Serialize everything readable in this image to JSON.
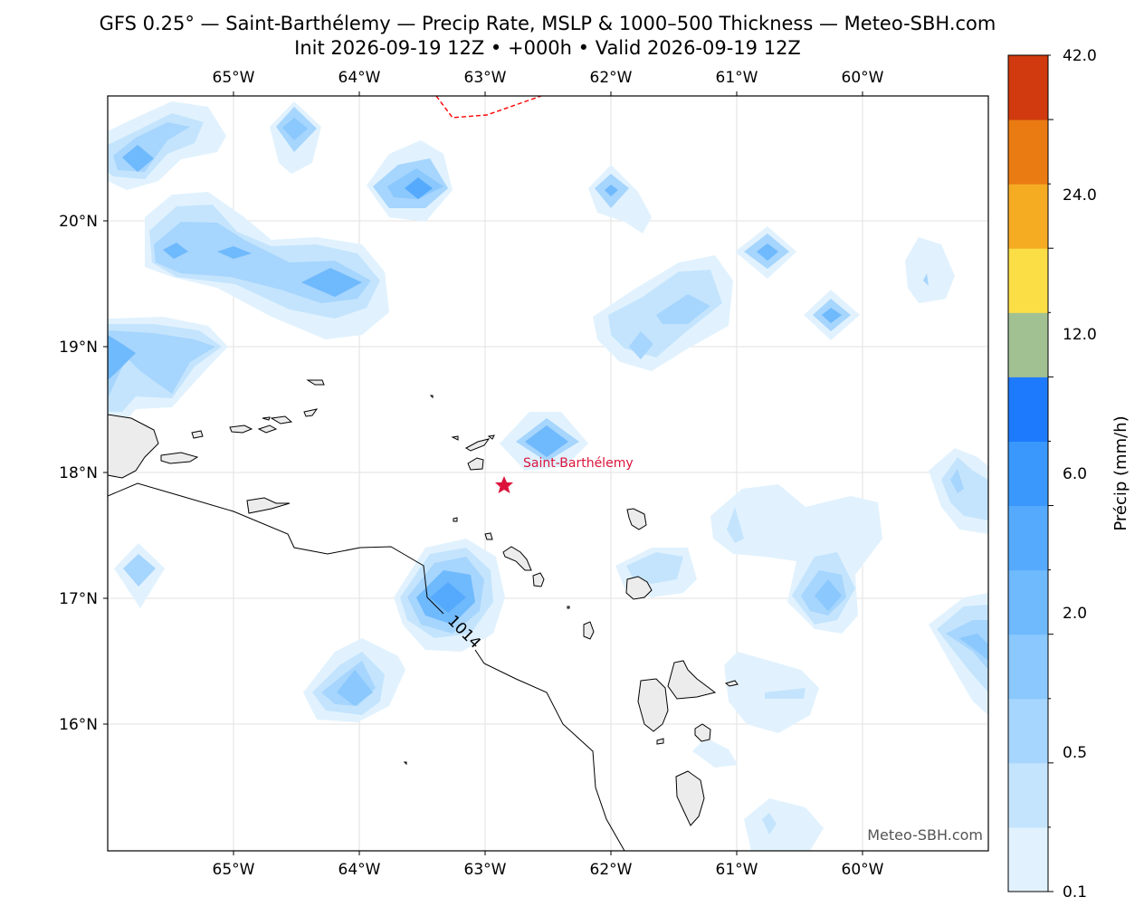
{
  "title_line1": "GFS 0.25° — Saint-Barthélemy — Precip Rate, MSLP & 1000–500 Thickness — Meteo-SBH.com",
  "title_line2": "Init 2026-09-19 12Z • +000h • Valid 2026-09-19 12Z",
  "map": {
    "lon_range": [
      -66.0,
      -59.0
    ],
    "lat_range": [
      15.0,
      21.0
    ],
    "lon_ticks": [
      "65°W",
      "64°W",
      "63°W",
      "62°W",
      "61°W",
      "60°W"
    ],
    "lat_ticks": [
      "20°N",
      "19°N",
      "18°N",
      "17°N",
      "16°N"
    ],
    "right_lat_ticks_partial": [
      "2",
      "1",
      "1",
      "1",
      "1"
    ],
    "marker": {
      "name": "Saint-Barthélemy",
      "lon": -62.85,
      "lat": 17.9,
      "color": "#dc143c"
    },
    "isobar_label": "1014",
    "watermark": "Meteo-SBH.com",
    "land_color": "#ececec",
    "thickness_line_color": "#ff0000"
  },
  "colorbar": {
    "label": "Précip (mm/h)",
    "tick_labels": [
      "0.1",
      "0.5",
      "2.0",
      "6.0",
      "12.0",
      "24.0",
      "42.0"
    ],
    "colors": [
      "#e1f2fe",
      "#c4e4fd",
      "#a6d5fd",
      "#8ac8fd",
      "#6fb9fd",
      "#55aafd",
      "#3a98fd",
      "#1e7afd",
      "#a1c193",
      "#fbde46",
      "#f5ac23",
      "#e97b12",
      "#d03a0e"
    ]
  }
}
